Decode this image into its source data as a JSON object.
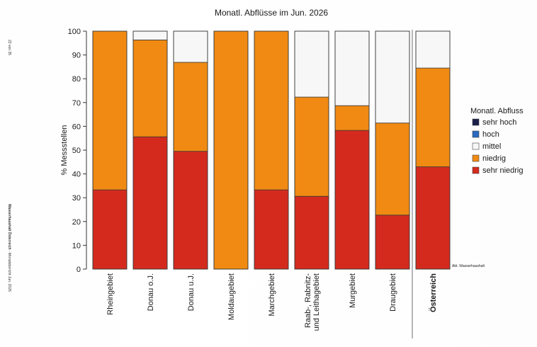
{
  "page": {
    "side_page": "22 von 35",
    "side_source_bold": "Wasserhaushalt Österreich",
    "side_source_rest": " - Monatsbericht Jun. 2026",
    "credit": "Abt. Wasserhaushalt"
  },
  "chart_data": {
    "type": "bar",
    "stacked": true,
    "title": "Monatl. Abflüsse im Jun. 2026",
    "ylabel": "% Messstellen",
    "xlabel": "",
    "ylim": [
      0,
      100
    ],
    "yticks": [
      0,
      10,
      20,
      30,
      40,
      50,
      60,
      70,
      80,
      90,
      100
    ],
    "categories": [
      "Rheingebiet",
      "Donau o.J.",
      "Donau u.J.",
      "Moldaugebiet",
      "Marchgebiet",
      "Raab-, Rabnitz-\nund Leithagebiet",
      "Murgebiet",
      "Draugebiet",
      "Österreich"
    ],
    "bold_category": "Österreich",
    "legend": {
      "title": "Monatl. Abfluss",
      "position": "right",
      "entries": [
        "sehr hoch",
        "hoch",
        "mittel",
        "niedrig",
        "sehr niedrig"
      ]
    },
    "series": [
      {
        "name": "sehr niedrig",
        "color": "#d42a1e",
        "values": [
          33.3,
          55.6,
          49.5,
          0,
          33.3,
          30.6,
          58.3,
          22.7,
          43.0
        ]
      },
      {
        "name": "niedrig",
        "color": "#f08a12",
        "values": [
          66.7,
          40.7,
          37.4,
          100,
          66.7,
          41.7,
          10.4,
          38.7,
          41.5
        ]
      },
      {
        "name": "mittel",
        "color": "#f7f7f7",
        "values": [
          0,
          3.7,
          13.1,
          0,
          0,
          27.7,
          31.3,
          38.6,
          15.5
        ]
      },
      {
        "name": "hoch",
        "color": "#2b6bbf",
        "values": [
          0,
          0,
          0,
          0,
          0,
          0,
          0,
          0,
          0
        ]
      },
      {
        "name": "sehr hoch",
        "color": "#1a1f4a",
        "values": [
          0,
          0,
          0,
          0,
          0,
          0,
          0,
          0,
          0
        ]
      }
    ]
  }
}
